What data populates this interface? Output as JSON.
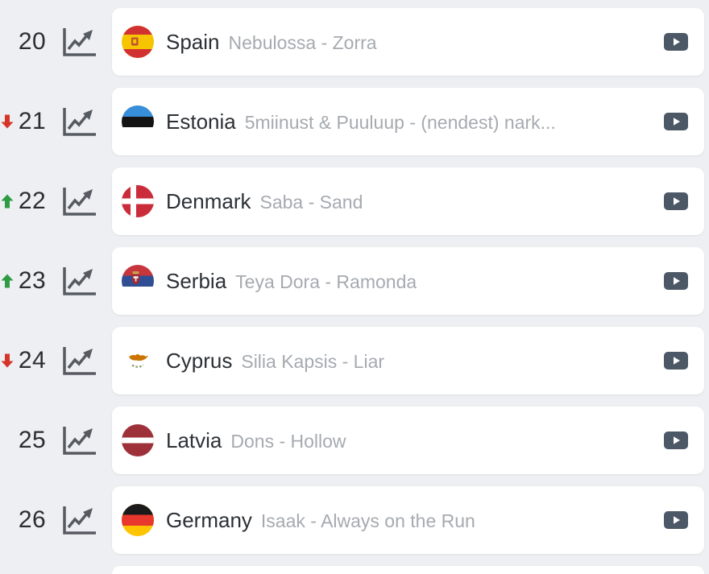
{
  "list": {
    "rows": [
      {
        "rank": "20",
        "movement": "none",
        "country": "Spain",
        "flag": "spain",
        "song": "Nebulossa - Zorra"
      },
      {
        "rank": "21",
        "movement": "down",
        "country": "Estonia",
        "flag": "estonia",
        "song": "5miinust & Puuluup - (nendest) nark..."
      },
      {
        "rank": "22",
        "movement": "up",
        "country": "Denmark",
        "flag": "denmark",
        "song": "Saba - Sand"
      },
      {
        "rank": "23",
        "movement": "up",
        "country": "Serbia",
        "flag": "serbia",
        "song": "Teya Dora - Ramonda"
      },
      {
        "rank": "24",
        "movement": "down",
        "country": "Cyprus",
        "flag": "cyprus",
        "song": "Silia Kapsis - Liar"
      },
      {
        "rank": "25",
        "movement": "none",
        "country": "Latvia",
        "flag": "latvia",
        "song": "Dons - Hollow"
      },
      {
        "rank": "26",
        "movement": "none",
        "country": "Germany",
        "flag": "germany",
        "song": "Isaak - Always on the Run"
      }
    ]
  },
  "icons": {
    "trend": "trend-chart-icon",
    "youtube": "youtube-play-icon",
    "movement_up": "movement-up-arrow-icon",
    "movement_down": "movement-down-arrow-icon"
  },
  "colors": {
    "background": "#edeff2",
    "card": "#ffffff",
    "movement_up": "#2e9b43",
    "movement_down": "#d63429",
    "trend_icon": "#565b61",
    "youtube_icon": "#4c5866",
    "rank_text": "#2a2e33",
    "country_text": "#2c3035",
    "song_text": "#a6aaaf"
  }
}
